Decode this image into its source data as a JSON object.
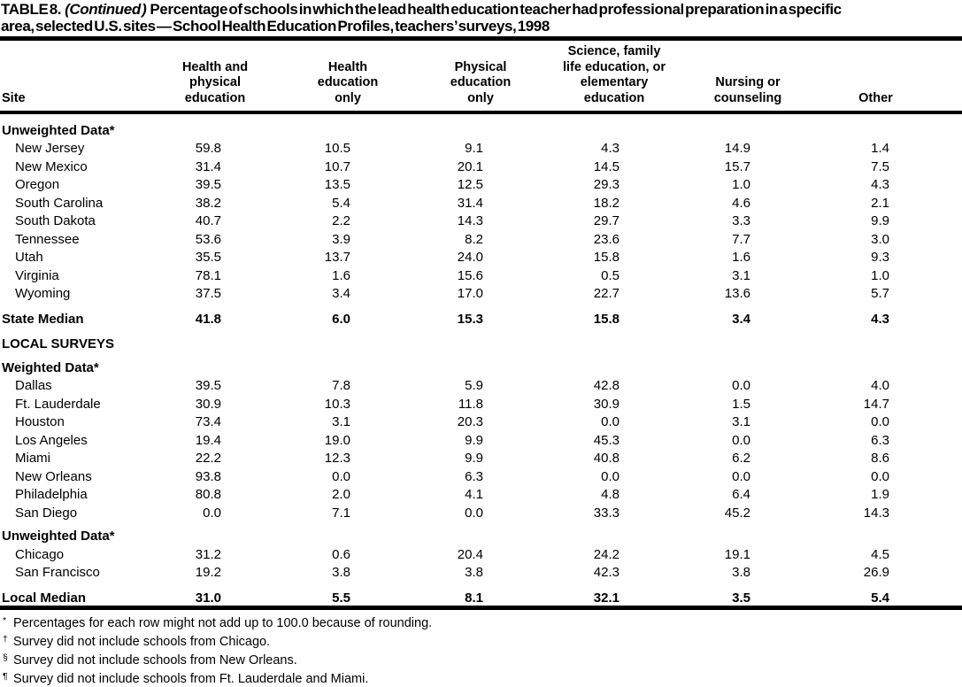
{
  "page": {
    "title_label": "TABLE 8.",
    "title_continued": "(Continued )",
    "title_text": "Percentage of schools in which the lead health education teacher had professional preparation in a specific\narea, selected U.S. sites — School Health Education Profiles, teachers’ surveys, 1998"
  },
  "table": {
    "columns": [
      "Site",
      "Health and\nphysical\neducation",
      "Health\neducation\nonly",
      "Physical\neducation\nonly",
      "Science, family\nlife education, or\nelementary\neducation",
      "Nursing or\ncounseling",
      "Other"
    ],
    "rows": [
      {
        "type": "section",
        "label": "Unweighted Data*"
      },
      {
        "type": "data",
        "label": "New Jersey",
        "values": [
          "59.8",
          "10.5",
          "9.1",
          "4.3",
          "14.9",
          "1.4"
        ]
      },
      {
        "type": "data",
        "label": "New Mexico",
        "values": [
          "31.4",
          "10.7",
          "20.1",
          "14.5",
          "15.7",
          "7.5"
        ]
      },
      {
        "type": "data",
        "label": "Oregon",
        "values": [
          "39.5",
          "13.5",
          "12.5",
          "29.3",
          "1.0",
          "4.3"
        ]
      },
      {
        "type": "data",
        "label": "South Carolina",
        "values": [
          "38.2",
          "5.4",
          "31.4",
          "18.2",
          "4.6",
          "2.1"
        ]
      },
      {
        "type": "data",
        "label": "South Dakota",
        "values": [
          "40.7",
          "2.2",
          "14.3",
          "29.7",
          "3.3",
          "9.9"
        ]
      },
      {
        "type": "data",
        "label": "Tennessee",
        "values": [
          "53.6",
          "3.9",
          "8.2",
          "23.6",
          "7.7",
          "3.0"
        ]
      },
      {
        "type": "data",
        "label": "Utah",
        "values": [
          "35.5",
          "13.7",
          "24.0",
          "15.8",
          "1.6",
          "9.3"
        ]
      },
      {
        "type": "data",
        "label": "Virginia",
        "values": [
          "78.1",
          "1.6",
          "15.6",
          "0.5",
          "3.1",
          "1.0"
        ]
      },
      {
        "type": "data",
        "label": "Wyoming",
        "values": [
          "37.5",
          "3.4",
          "17.0",
          "22.7",
          "13.6",
          "5.7"
        ]
      },
      {
        "type": "median",
        "label": "State Median",
        "values": [
          "41.8",
          "6.0",
          "15.3",
          "15.8",
          "3.4",
          "4.3"
        ]
      },
      {
        "type": "group",
        "label": "LOCAL SURVEYS"
      },
      {
        "type": "section",
        "label": "Weighted Data*"
      },
      {
        "type": "data",
        "label": "Dallas",
        "values": [
          "39.5",
          "7.8",
          "5.9",
          "42.8",
          "0.0",
          "4.0"
        ]
      },
      {
        "type": "data",
        "label": "Ft. Lauderdale",
        "values": [
          "30.9",
          "10.3",
          "11.8",
          "30.9",
          "1.5",
          "14.7"
        ]
      },
      {
        "type": "data",
        "label": "Houston",
        "values": [
          "73.4",
          "3.1",
          "20.3",
          "0.0",
          "3.1",
          "0.0"
        ]
      },
      {
        "type": "data",
        "label": "Los Angeles",
        "values": [
          "19.4",
          "19.0",
          "9.9",
          "45.3",
          "0.0",
          "6.3"
        ]
      },
      {
        "type": "data",
        "label": "Miami",
        "values": [
          "22.2",
          "12.3",
          "9.9",
          "40.8",
          "6.2",
          "8.6"
        ]
      },
      {
        "type": "data",
        "label": "New Orleans",
        "values": [
          "93.8",
          "0.0",
          "6.3",
          "0.0",
          "0.0",
          "0.0"
        ]
      },
      {
        "type": "data",
        "label": "Philadelphia",
        "values": [
          "80.8",
          "2.0",
          "4.1",
          "4.8",
          "6.4",
          "1.9"
        ]
      },
      {
        "type": "data",
        "label": "San Diego",
        "values": [
          "0.0",
          "7.1",
          "0.0",
          "33.3",
          "45.2",
          "14.3"
        ]
      },
      {
        "type": "section",
        "label": "Unweighted Data*"
      },
      {
        "type": "data",
        "label": "Chicago",
        "values": [
          "31.2",
          "0.6",
          "20.4",
          "24.2",
          "19.1",
          "4.5"
        ]
      },
      {
        "type": "data",
        "label": "San Francisco",
        "values": [
          "19.2",
          "3.8",
          "3.8",
          "42.3",
          "3.8",
          "26.9"
        ]
      },
      {
        "type": "median",
        "label": "Local Median",
        "values": [
          "31.0",
          "5.5",
          "8.1",
          "32.1",
          "3.5",
          "5.4"
        ]
      }
    ]
  },
  "footnotes": [
    {
      "symbol": "*",
      "text": "Percentages for each row might not add up to 100.0 because of rounding."
    },
    {
      "symbol": "†",
      "text": "Survey did not include schools from Chicago."
    },
    {
      "symbol": "§",
      "text": "Survey did not include schools from New Orleans."
    },
    {
      "symbol": "¶",
      "text": "Survey did not include schools from Ft. Lauderdale and Miami."
    }
  ]
}
